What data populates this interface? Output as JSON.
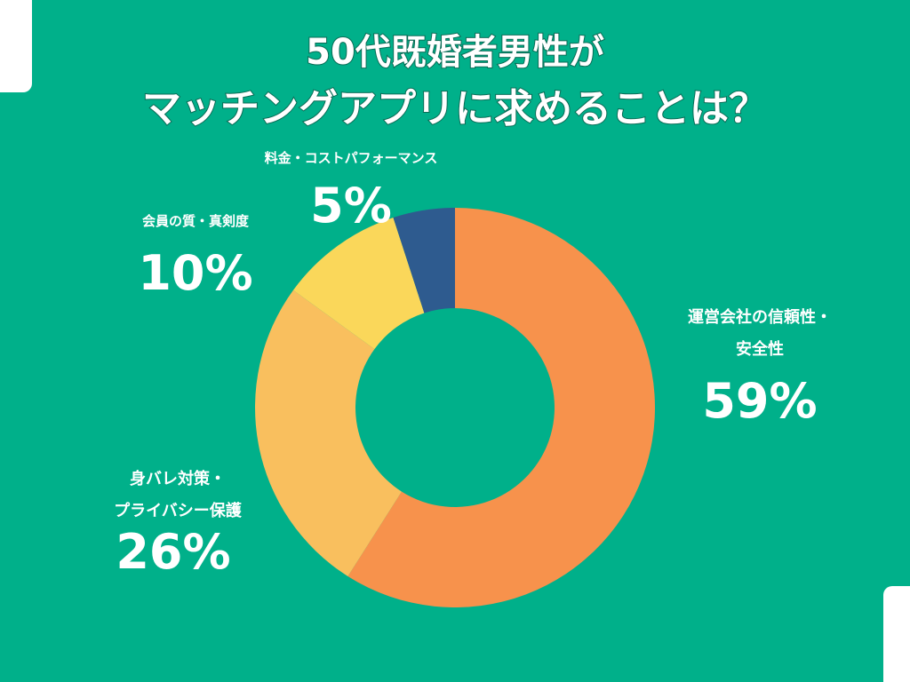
{
  "title": {
    "line1": "50代既婚者男性が",
    "line2": "マッチングアプリに求めることは？"
  },
  "chart_data": {
    "type": "pie",
    "donut": true,
    "categories": [
      "運営会社の信頼性・安全性",
      "身バレ対策・プライバシー保護",
      "会員の質・真剣度",
      "料金・コストパフォーマンス"
    ],
    "values": [
      59,
      26,
      10,
      5
    ],
    "labels": [
      "59%",
      "26%",
      "10%",
      "5%"
    ],
    "colors": [
      "#f7924c",
      "#f9bf5e",
      "#fad75a",
      "#2e5b8f"
    ],
    "start_angle_deg": 0,
    "direction": "clockwise"
  },
  "labels": {
    "trust_name_line1": "運営会社の信頼性・",
    "trust_name_line2": "安全性",
    "trust_pct": "59%",
    "privacy_name_line1": "身バレ対策・",
    "privacy_name_line2": "プライバシー保護",
    "privacy_pct": "26%",
    "quality_name": "会員の質・真剣度",
    "quality_pct": "10%",
    "cost_name": "料金・コストパフォーマンス",
    "cost_pct": "5%"
  }
}
